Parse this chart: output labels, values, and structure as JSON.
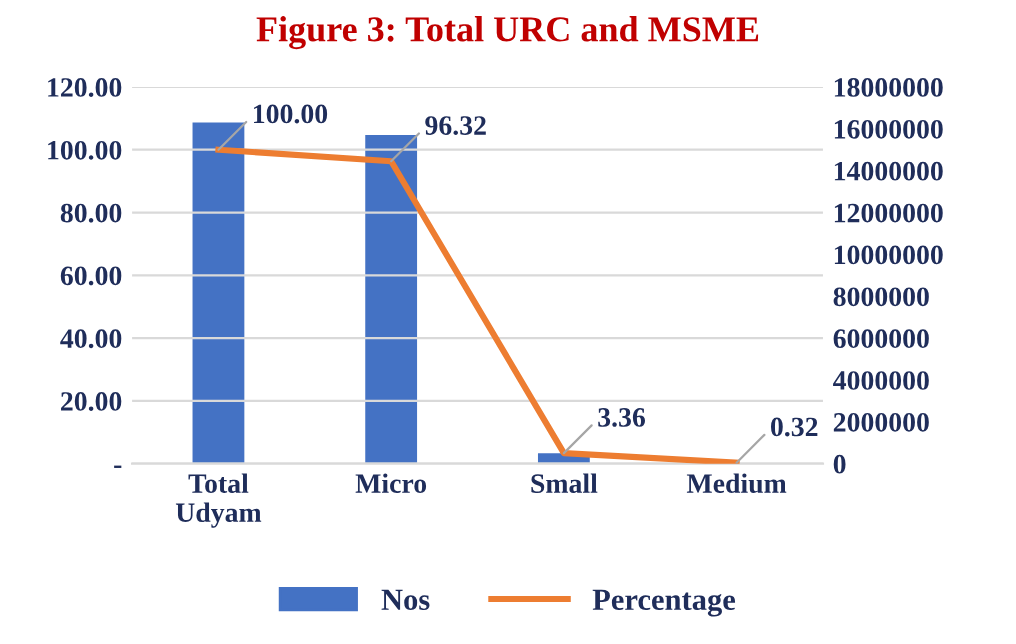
{
  "chart_data": {
    "type": "bar",
    "title": "Figure 3: Total URC and MSME",
    "categories": [
      "Total\nUdyam",
      "Micro",
      "Small",
      "Medium"
    ],
    "series": [
      {
        "name": "Nos",
        "axis": "y2",
        "color": "#4472c4",
        "values": [
          16300000,
          15700000,
          500000,
          null
        ]
      },
      {
        "name": "Percentage",
        "type": "line",
        "axis": "y",
        "color": "#ed7d31",
        "values": [
          100.0,
          96.32,
          3.36,
          0.32
        ],
        "value_labels": [
          "100.00",
          "96.32",
          "3.36",
          "0.32"
        ]
      }
    ],
    "ylim": [
      0,
      120
    ],
    "yticks": [
      {
        "value": 0,
        "label": "-"
      },
      {
        "value": 20,
        "label": "20.00"
      },
      {
        "value": 40,
        "label": "40.00"
      },
      {
        "value": 60,
        "label": "60.00"
      },
      {
        "value": 80,
        "label": "80.00"
      },
      {
        "value": 100,
        "label": "100.00"
      },
      {
        "value": 120,
        "label": "120.00"
      }
    ],
    "y2lim": [
      0,
      18000000
    ],
    "y2ticks": [
      0,
      2000000,
      4000000,
      6000000,
      8000000,
      10000000,
      12000000,
      14000000,
      16000000,
      18000000
    ],
    "grid": "y",
    "legend": "bottom",
    "marker": "none",
    "line_style": "solid"
  }
}
